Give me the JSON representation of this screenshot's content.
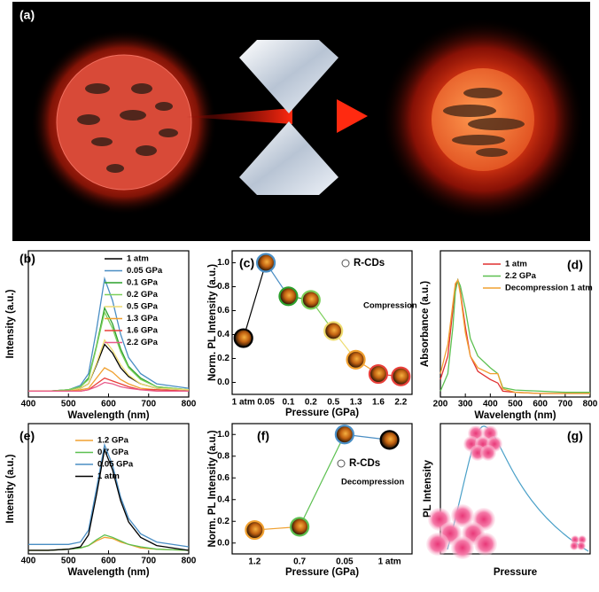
{
  "panel_a": {
    "label": "(a)"
  },
  "chart_data": [
    {
      "type": "line",
      "panel_label": "(b)",
      "xlabel": "Wavelength (nm)",
      "ylabel": "Intensity (a.u.)",
      "x": [
        400,
        450,
        500,
        530,
        550,
        570,
        590,
        610,
        630,
        650,
        680,
        720,
        800
      ],
      "xlim": [
        400,
        800
      ],
      "xticks": [
        400,
        500,
        600,
        700,
        800
      ],
      "ylim": [
        0,
        1
      ],
      "series": [
        {
          "name": "1 atm",
          "color": "#000000",
          "values": [
            0.04,
            0.04,
            0.04,
            0.06,
            0.09,
            0.22,
            0.36,
            0.3,
            0.2,
            0.14,
            0.09,
            0.06,
            0.05
          ]
        },
        {
          "name": "0.05 GPa",
          "color": "#4a8ec4",
          "values": [
            0.04,
            0.04,
            0.05,
            0.08,
            0.16,
            0.46,
            0.81,
            0.66,
            0.43,
            0.27,
            0.16,
            0.09,
            0.06
          ]
        },
        {
          "name": "0.1 GPa",
          "color": "#2ca02c",
          "values": [
            0.04,
            0.04,
            0.05,
            0.07,
            0.13,
            0.35,
            0.61,
            0.5,
            0.33,
            0.21,
            0.13,
            0.07,
            0.05
          ]
        },
        {
          "name": "0.2 GPa",
          "color": "#7ccf5a",
          "values": [
            0.04,
            0.04,
            0.05,
            0.07,
            0.12,
            0.34,
            0.58,
            0.47,
            0.31,
            0.2,
            0.12,
            0.07,
            0.05
          ]
        },
        {
          "name": "0.5 GPa",
          "color": "#eedc70",
          "values": [
            0.04,
            0.04,
            0.04,
            0.06,
            0.09,
            0.23,
            0.39,
            0.32,
            0.22,
            0.15,
            0.09,
            0.06,
            0.05
          ]
        },
        {
          "name": "1.3 GPa",
          "color": "#f0a030",
          "values": [
            0.04,
            0.04,
            0.04,
            0.05,
            0.06,
            0.13,
            0.2,
            0.17,
            0.12,
            0.09,
            0.06,
            0.05,
            0.04
          ]
        },
        {
          "name": "1.6 GPa",
          "color": "#e8403a",
          "values": [
            0.04,
            0.04,
            0.04,
            0.04,
            0.05,
            0.09,
            0.13,
            0.11,
            0.09,
            0.07,
            0.05,
            0.05,
            0.04
          ]
        },
        {
          "name": "2.2 GPa",
          "color": "#e85a8a",
          "values": [
            0.04,
            0.04,
            0.04,
            0.04,
            0.05,
            0.07,
            0.1,
            0.09,
            0.07,
            0.06,
            0.05,
            0.04,
            0.04
          ]
        }
      ]
    },
    {
      "type": "dotline",
      "panel_label": "(c)",
      "xlabel": "Pressure (GPa)",
      "ylabel": "Norm. PL Intensity (a.u.)",
      "categories": [
        "1 atm",
        "0.05",
        "0.1",
        "0.2",
        "0.5",
        "1.3",
        "1.6",
        "2.2"
      ],
      "values": [
        0.37,
        1.0,
        0.72,
        0.69,
        0.43,
        0.19,
        0.07,
        0.05
      ],
      "colors": [
        "#000000",
        "#4a8ec4",
        "#2ca02c",
        "#7ccf5a",
        "#eedc70",
        "#f0a030",
        "#e8403a",
        "#e8403a"
      ],
      "ylim": [
        -0.1,
        1.1
      ],
      "yticks": [
        {
          "value": 0,
          "label": "0.0"
        },
        0.2,
        0.4,
        0.6,
        0.8,
        {
          "value": 1,
          "label": "1.0"
        }
      ],
      "legend_label": "R-CDs",
      "annotation": "Compression"
    },
    {
      "type": "line",
      "panel_label": "(d)",
      "xlabel": "Wavelength (nm)",
      "ylabel": "Absorbance (a.u.)",
      "x": [
        200,
        230,
        250,
        260,
        270,
        280,
        300,
        320,
        350,
        400,
        430,
        450,
        500,
        600,
        700,
        800
      ],
      "xlim": [
        200,
        800
      ],
      "xticks": [
        200,
        300,
        400,
        500,
        600,
        700,
        800
      ],
      "ylim": [
        0,
        1.25
      ],
      "series": [
        {
          "name": "1 atm",
          "color": "#e03030",
          "values": [
            0.15,
            0.35,
            0.75,
            0.95,
            1.0,
            0.9,
            0.6,
            0.35,
            0.22,
            0.15,
            0.12,
            0.05,
            0.04,
            0.03,
            0.03,
            0.03
          ]
        },
        {
          "name": "2.2 GPa",
          "color": "#5cc050",
          "values": [
            0.05,
            0.2,
            0.6,
            0.9,
            1.0,
            0.95,
            0.75,
            0.5,
            0.35,
            0.25,
            0.2,
            0.08,
            0.06,
            0.05,
            0.04,
            0.04
          ]
        },
        {
          "name": "Decompression 1 atm",
          "color": "#f0a030",
          "values": [
            0.2,
            0.45,
            0.8,
            0.97,
            1.0,
            0.88,
            0.55,
            0.35,
            0.25,
            0.2,
            0.2,
            0.07,
            0.04,
            0.03,
            0.03,
            0.03
          ]
        }
      ]
    },
    {
      "type": "line",
      "panel_label": "(e)",
      "xlabel": "Wavelength (nm)",
      "ylabel": "Intensity (a.u.)",
      "x": [
        400,
        450,
        500,
        530,
        550,
        570,
        590,
        610,
        630,
        650,
        680,
        720,
        800
      ],
      "xlim": [
        400,
        800
      ],
      "xticks": [
        400,
        500,
        600,
        700,
        800
      ],
      "ylim": [
        0,
        1.1
      ],
      "series": [
        {
          "name": "1.2 GPa",
          "color": "#f0a030",
          "values": [
            0.03,
            0.03,
            0.04,
            0.05,
            0.07,
            0.11,
            0.14,
            0.13,
            0.1,
            0.08,
            0.05,
            0.04,
            0.03
          ]
        },
        {
          "name": "0.7 GPa",
          "color": "#5cc050",
          "values": [
            0.03,
            0.03,
            0.04,
            0.05,
            0.07,
            0.12,
            0.16,
            0.14,
            0.11,
            0.08,
            0.06,
            0.04,
            0.03
          ]
        },
        {
          "name": "0.05 GPa",
          "color": "#4a8ec4",
          "values": [
            0.08,
            0.08,
            0.08,
            0.1,
            0.2,
            0.55,
            0.92,
            0.75,
            0.48,
            0.3,
            0.17,
            0.1,
            0.06
          ]
        },
        {
          "name": "1 atm",
          "color": "#000000",
          "values": [
            0.03,
            0.03,
            0.04,
            0.06,
            0.16,
            0.5,
            0.88,
            0.71,
            0.45,
            0.27,
            0.14,
            0.07,
            0.03
          ]
        }
      ]
    },
    {
      "type": "dotline",
      "panel_label": "(f)",
      "xlabel": "Pressure (GPa)",
      "ylabel": "Norm. PL Intensity (a.u.)",
      "categories": [
        "1.2",
        "0.7",
        "0.05",
        "1 atm"
      ],
      "values": [
        0.12,
        0.15,
        1.0,
        0.95
      ],
      "colors": [
        "#f0a030",
        "#5cc050",
        "#4a8ec4",
        "#000000"
      ],
      "ylim": [
        -0.1,
        1.1
      ],
      "yticks": [
        {
          "value": 0,
          "label": "0.0"
        },
        0.2,
        0.4,
        0.6,
        0.8,
        {
          "value": 1,
          "label": "1.0"
        }
      ],
      "legend_label": "R-CDs",
      "annotation": "Decompression"
    },
    {
      "type": "schematic",
      "panel_label": "(g)",
      "xlabel": "Pressure",
      "ylabel": "PL Intensity"
    }
  ]
}
